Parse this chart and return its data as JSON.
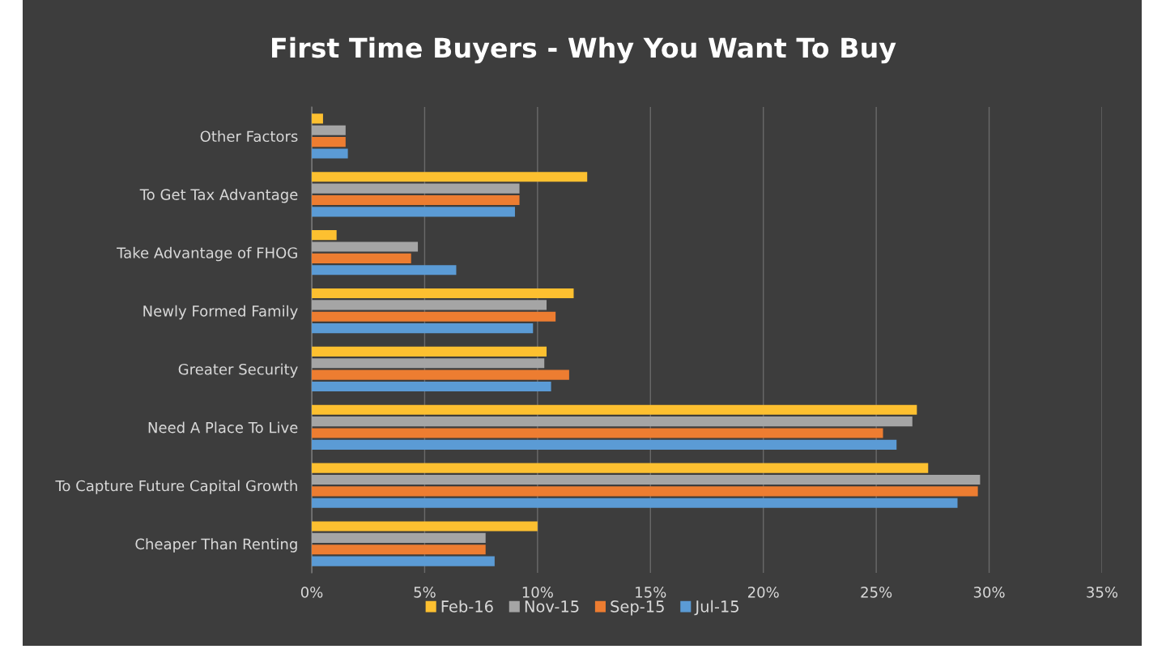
{
  "chart_data": {
    "type": "bar",
    "orientation": "horizontal",
    "title": "First Time Buyers - Why You Want To Buy",
    "categories": [
      "Other Factors",
      "To Get Tax Advantage",
      "Take Advantage of FHOG",
      "Newly Formed Family",
      "Greater Security",
      "Need A Place To Live",
      "To Capture Future Capital Growth",
      "Cheaper Than Renting"
    ],
    "series": [
      {
        "name": "Feb-16",
        "color": "#fdc030",
        "values": [
          0.5,
          12.2,
          1.1,
          11.6,
          10.4,
          26.8,
          27.3,
          10.0
        ]
      },
      {
        "name": "Nov-15",
        "color": "#a5a5a5",
        "values": [
          1.5,
          9.2,
          4.7,
          10.4,
          10.3,
          26.6,
          29.6,
          7.7
        ]
      },
      {
        "name": "Sep-15",
        "color": "#ed7d31",
        "values": [
          1.5,
          9.2,
          4.4,
          10.8,
          11.4,
          25.3,
          29.5,
          7.7
        ]
      },
      {
        "name": "Jul-15",
        "color": "#5b9bd5",
        "values": [
          1.6,
          9.0,
          6.4,
          9.8,
          10.6,
          25.9,
          28.6,
          8.1
        ]
      }
    ],
    "xlim": [
      0,
      35
    ],
    "xticks": [
      {
        "value": 0,
        "label": "0%"
      },
      {
        "value": 5,
        "label": "5%"
      },
      {
        "value": 10,
        "label": "10%"
      },
      {
        "value": 15,
        "label": "15%"
      },
      {
        "value": 20,
        "label": "20%"
      },
      {
        "value": 25,
        "label": "25%"
      },
      {
        "value": 30,
        "label": "30%"
      },
      {
        "value": 35,
        "label": "35%"
      }
    ],
    "grid": "x",
    "legend": "bottom"
  }
}
